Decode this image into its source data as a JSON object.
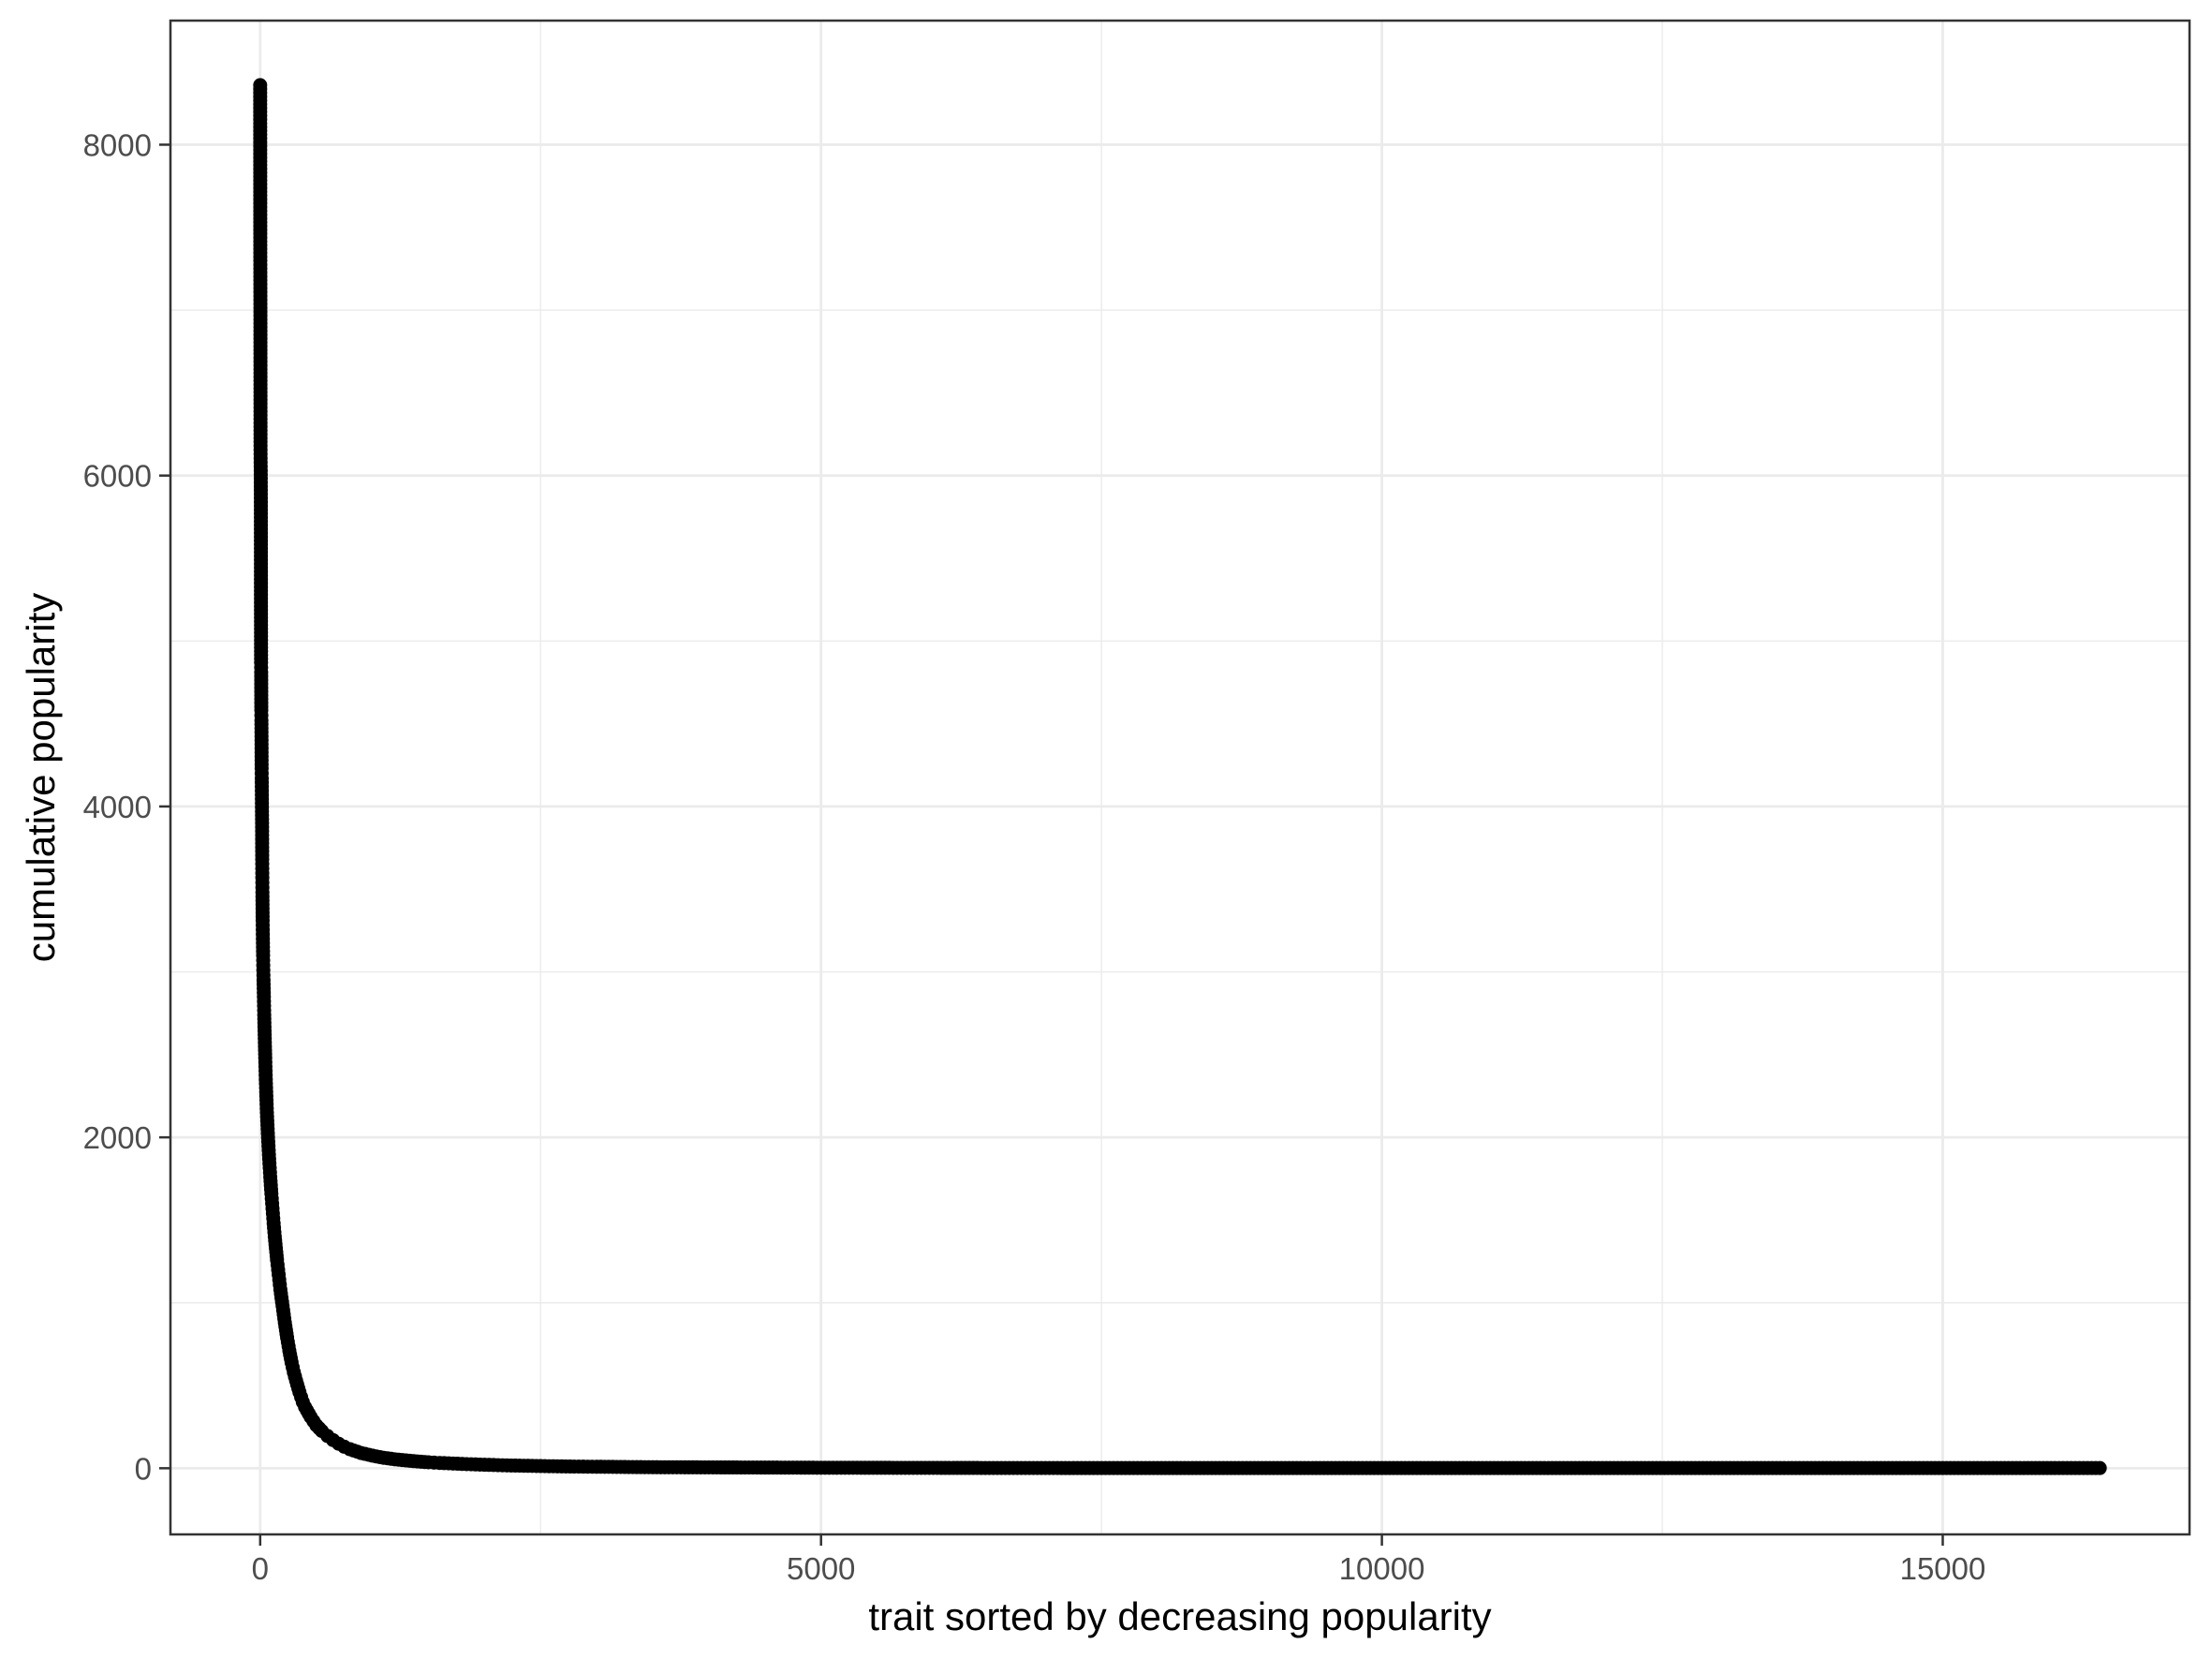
{
  "chart_data": {
    "type": "scatter",
    "title": "",
    "xlabel": "trait sorted by decreasing popularity",
    "ylabel": "cumulative popularity",
    "xlim": [
      -800,
      17200
    ],
    "ylim": [
      -400,
      8750
    ],
    "x_ticks": [
      0,
      5000,
      10000,
      15000
    ],
    "x_tick_labels": [
      "0",
      "5000",
      "10000",
      "15000"
    ],
    "y_ticks": [
      0,
      2000,
      4000,
      6000,
      8000
    ],
    "y_tick_labels": [
      "0",
      "2000",
      "4000",
      "6000",
      "8000"
    ],
    "x_minor_gridlines": [
      2500,
      7500,
      12500
    ],
    "y_minor_gridlines": [
      1000,
      3000,
      5000,
      7000
    ],
    "grid": true,
    "legend": "none",
    "point_color": "#000000",
    "grid_color": "#ebebeb",
    "series": [
      {
        "x": [
          0,
          1,
          2,
          3,
          4,
          5,
          6,
          7,
          8,
          9,
          10,
          11,
          12,
          13,
          14,
          15,
          16,
          17,
          18,
          19,
          20,
          22,
          24,
          26,
          28,
          30,
          33,
          36,
          40,
          45,
          50,
          55,
          60,
          70,
          80,
          90,
          100,
          110,
          120,
          130,
          140,
          150,
          160,
          170,
          180,
          190,
          200,
          220,
          240,
          260,
          280,
          300,
          320,
          350,
          380,
          400,
          450,
          500,
          550,
          600,
          650,
          700,
          750,
          800,
          900,
          1000,
          1100,
          1200,
          1300,
          1400,
          1500,
          1600,
          1800,
          2000,
          2200,
          2500,
          2800,
          3000,
          3500,
          4000,
          4500,
          5000,
          5500,
          6000,
          6500,
          7000,
          7500,
          8000,
          9000,
          10000,
          11000,
          12000,
          13000,
          14000,
          15000,
          16000,
          16400
        ],
        "y": [
          8360,
          7370,
          6990,
          6180,
          6080,
          6030,
          5840,
          5210,
          4870,
          4810,
          4580,
          4520,
          4400,
          4230,
          4170,
          4070,
          3970,
          3900,
          3680,
          3570,
          3480,
          3310,
          3200,
          3100,
          3010,
          2950,
          2850,
          2740,
          2620,
          2480,
          2350,
          2250,
          2150,
          2000,
          1870,
          1760,
          1660,
          1570,
          1480,
          1400,
          1330,
          1260,
          1200,
          1140,
          1080,
          1030,
          980,
          880,
          790,
          710,
          640,
          580,
          530,
          460,
          400,
          370,
          310,
          260,
          225,
          195,
          170,
          148,
          130,
          115,
          92,
          76,
          63,
          54,
          47,
          41,
          36,
          32,
          26,
          21,
          17,
          13,
          10,
          9,
          6,
          5,
          4,
          3,
          2.5,
          2,
          1.6,
          1.3,
          1.1,
          1,
          1,
          1,
          1,
          1,
          1,
          1,
          1,
          1,
          1
        ]
      }
    ]
  }
}
